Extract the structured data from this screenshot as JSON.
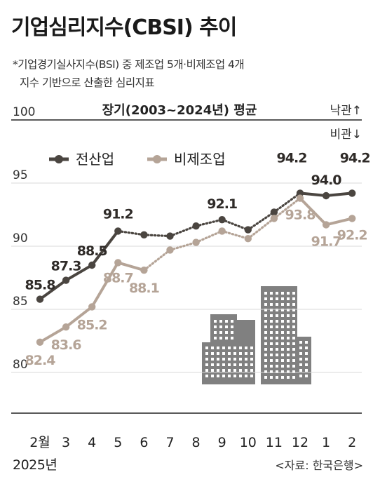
{
  "title": "기업심리지수(CBSI) 추이",
  "note_line1": "*기업경기실사지수(BSI) 중 제조업 5개·비제조업 4개",
  "note_line2": "지수 기반으로 산출한 심리지표",
  "year_label": "2025년",
  "source": "<자료: 한국은행>",
  "colors": {
    "manufacturing": "#4a4540",
    "non_manufacturing": "#b5a497",
    "grid": "#d9d9d9",
    "baseline": "#222222",
    "building": "#808080"
  },
  "chart_data": {
    "type": "line",
    "categories": [
      "2월",
      "3",
      "4",
      "5",
      "6",
      "7",
      "8",
      "9",
      "10",
      "11",
      "12",
      "1",
      "2"
    ],
    "y_ticks": [
      "80",
      "85",
      "90",
      "95",
      "100"
    ],
    "ylim": [
      79,
      100
    ],
    "grid": true,
    "legend_position": "top-left",
    "reference_line": {
      "value": 100,
      "label": "장기(2003~2024년) 평균",
      "above_label": "낙관↑",
      "below_label": "비관↓"
    },
    "series": [
      {
        "name": "전산업",
        "values": [
          85.8,
          87.3,
          88.5,
          91.2,
          90.9,
          90.8,
          91.6,
          92.1,
          91.3,
          92.7,
          94.2,
          94.0,
          94.2
        ],
        "data_labels": [
          "85.8",
          "87.3",
          "88.5",
          "91.2",
          "",
          "",
          "",
          "92.1",
          "",
          "",
          "94.2",
          "94.0",
          "94.2"
        ]
      },
      {
        "name": "비제조업",
        "values": [
          82.4,
          83.6,
          85.2,
          88.7,
          88.1,
          89.7,
          90.3,
          91.2,
          90.6,
          92.2,
          93.8,
          91.7,
          92.2
        ],
        "data_labels": [
          "82.4",
          "83.6",
          "85.2",
          "88.7",
          "88.1",
          "",
          "",
          "",
          "",
          "",
          "93.8",
          "91.7",
          "92.2"
        ]
      }
    ]
  }
}
